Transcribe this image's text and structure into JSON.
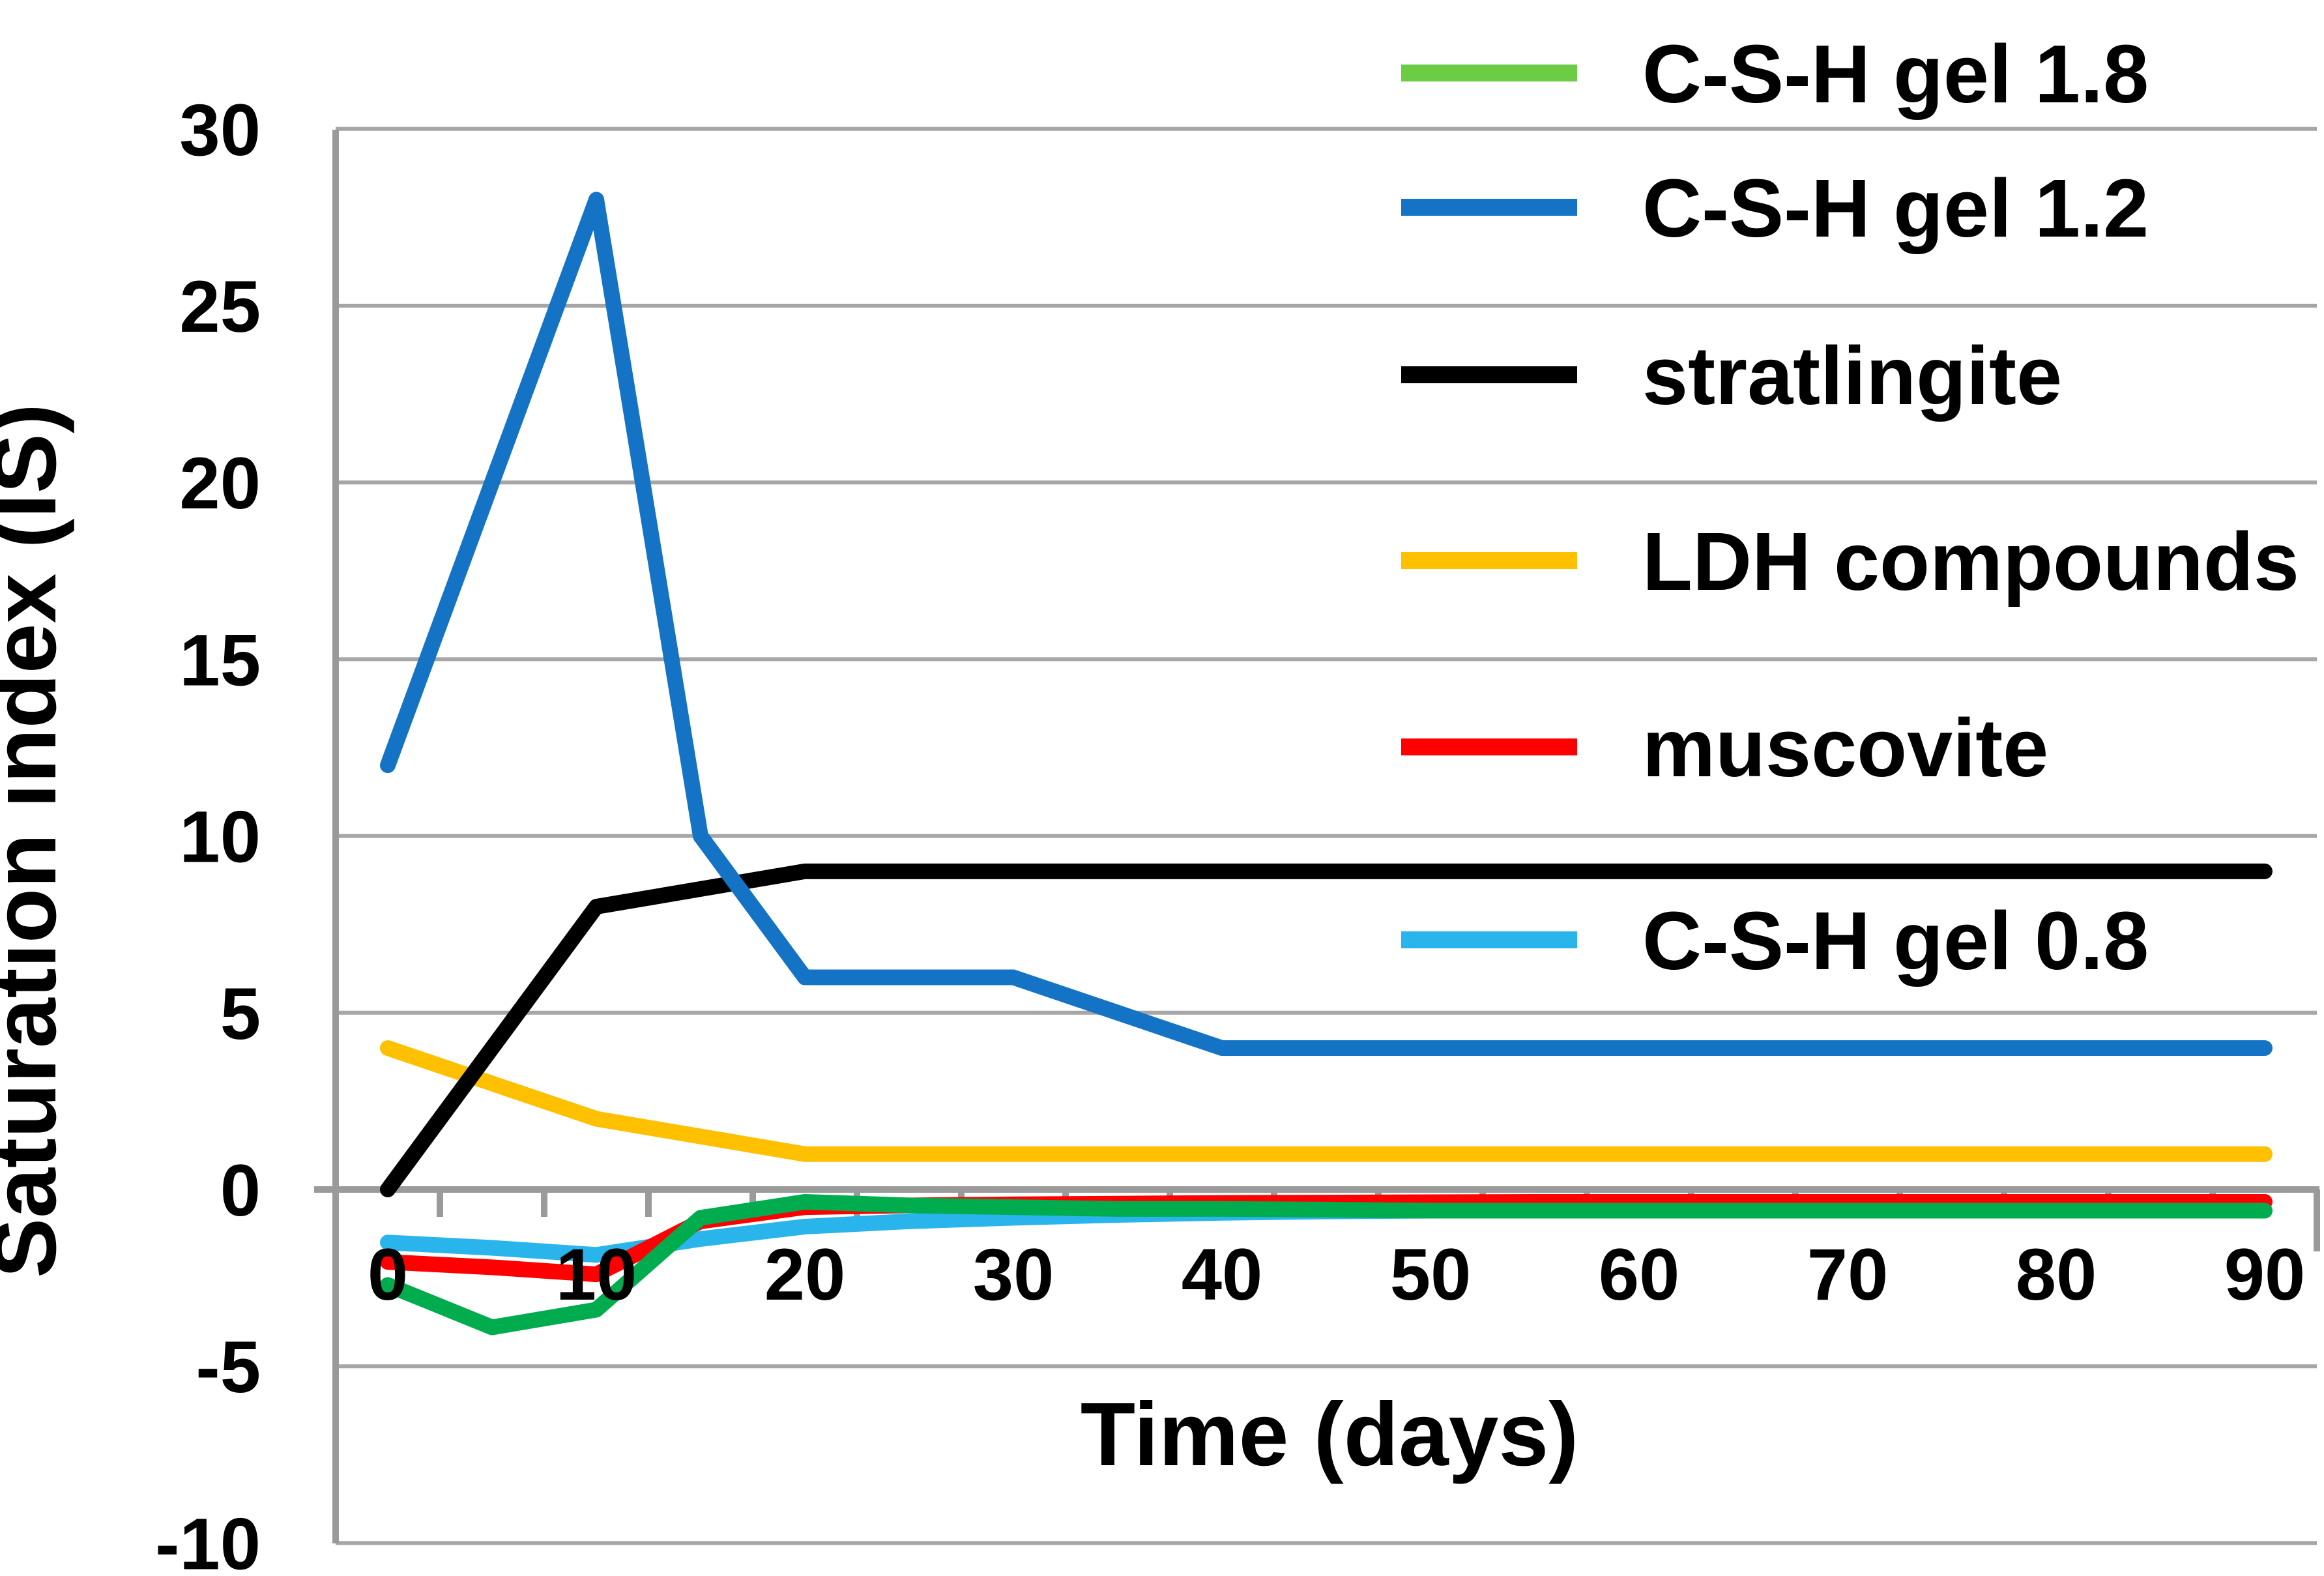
{
  "chart_data": {
    "type": "line",
    "title": "",
    "xlabel": "Time (days)",
    "ylabel": "Saturation index (IS)",
    "x": [
      0,
      5,
      10,
      15,
      20,
      25,
      30,
      35,
      40,
      45,
      50,
      55,
      60,
      65,
      70,
      75,
      80,
      85,
      90
    ],
    "x_tick_label_values": [
      0,
      10,
      20,
      30,
      40,
      50,
      60,
      70,
      80,
      90
    ],
    "x_tick_labels": [
      "0",
      "10",
      "20",
      "30",
      "40",
      "50",
      "60",
      "70",
      "80",
      "90"
    ],
    "y_ticks": [
      30,
      25,
      20,
      15,
      10,
      5,
      0,
      -5,
      -10
    ],
    "y_tick_labels": [
      "30",
      "25",
      "20",
      "15",
      "10",
      "5",
      "0",
      "-5",
      "-10"
    ],
    "ylim": [
      -10,
      30
    ],
    "xlim": [
      -2.5,
      92.5
    ],
    "grid": "horizontal",
    "minor_x_tick_step_days": 5,
    "legend_position": "upper-right-inside",
    "series": [
      {
        "name": "C-S-H gel 1.8",
        "color": "#00AC4E",
        "legend_color": "#6CCC45",
        "values": [
          -2.7,
          -3.9,
          -3.4,
          -0.8,
          -0.35,
          -0.45,
          -0.5,
          -0.55,
          -0.55,
          -0.57,
          -0.6,
          -0.6,
          -0.6,
          -0.6,
          -0.6,
          -0.6,
          -0.6,
          -0.6,
          -0.6
        ]
      },
      {
        "name": "C-S-H gel 1.2",
        "color": "#1473C4",
        "values": [
          12,
          20,
          28,
          10,
          6,
          6,
          6,
          5,
          4,
          4,
          4,
          4,
          4,
          4,
          4,
          4,
          4,
          4,
          4
        ]
      },
      {
        "name": "stratlingite",
        "color": "#000000",
        "values": [
          0,
          4,
          8,
          8.5,
          9,
          9,
          9,
          9,
          9,
          9,
          9,
          9,
          9,
          9,
          9,
          9,
          9,
          9,
          9
        ]
      },
      {
        "name": "LDH compounds",
        "color": "#FFC000",
        "values": [
          4,
          3,
          2,
          1.5,
          1,
          1,
          1,
          1,
          1,
          1,
          1,
          1,
          1,
          1,
          1,
          1,
          1,
          1,
          1
        ]
      },
      {
        "name": "muscovite",
        "color": "#FF0000",
        "values": [
          -2.05,
          -2.2,
          -2.4,
          -0.9,
          -0.5,
          -0.45,
          -0.42,
          -0.4,
          -0.38,
          -0.37,
          -0.36,
          -0.35,
          -0.35,
          -0.35,
          -0.35,
          -0.35,
          -0.35,
          -0.35,
          -0.35
        ]
      },
      {
        "name": "C-S-H gel 0.8",
        "color": "#29B4EC",
        "values": [
          -1.5,
          -1.65,
          -1.85,
          -1.4,
          -1.05,
          -0.9,
          -0.8,
          -0.72,
          -0.66,
          -0.62,
          -0.6,
          -0.6,
          -0.6,
          -0.6,
          -0.6,
          -0.6,
          -0.6,
          -0.6,
          -0.6
        ]
      }
    ],
    "draw_order": [
      "C-S-H gel 0.8",
      "muscovite",
      "LDH compounds",
      "stratlingite",
      "C-S-H gel 1.2",
      "C-S-H gel 1.8"
    ]
  },
  "colors": {
    "background": "#FFFFFF",
    "gridline": "#A6A6A6",
    "axis": "#9A9A9A",
    "text": "#000000"
  }
}
